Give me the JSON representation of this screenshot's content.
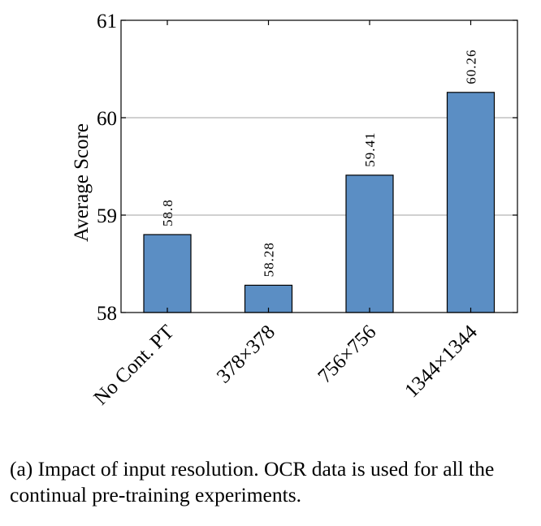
{
  "chart_data": {
    "type": "bar",
    "categories": [
      "No Cont. PT",
      "378×378",
      "756×756",
      "1344×1344"
    ],
    "values": [
      58.8,
      58.28,
      59.41,
      60.26
    ],
    "value_labels": [
      "58.8",
      "58.28",
      "59.41",
      "60.26"
    ],
    "title": "",
    "xlabel": "",
    "ylabel": "Average Score",
    "ylim": [
      58,
      61
    ],
    "yticks": [
      58,
      59,
      60,
      61
    ],
    "grid": true,
    "bar_color": "#5b8ec4",
    "bar_edge_color": "#000000",
    "grid_color": "#b3b3b3"
  },
  "caption": "(a) Impact of input resolution. OCR data is used for all the continual pre-training experiments."
}
